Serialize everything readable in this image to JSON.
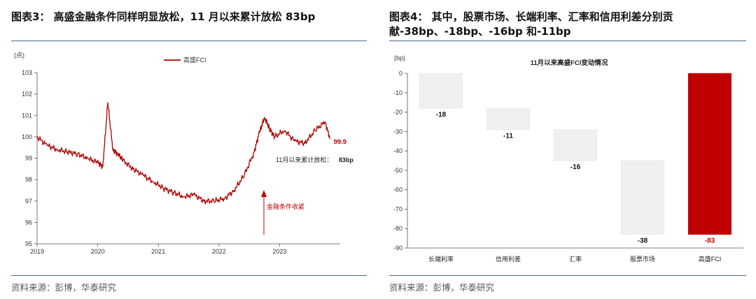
{
  "left_panel": {
    "title": "图表3：  高盛金融条件同样明显放松，11 月以来累计放松 83bp",
    "source": "资料来源：彭博，华泰研究"
  },
  "right_panel": {
    "title": "图表4：  其中，股票市场、长端利率、汇率和信用利差分别贡献-38bp、-18bp、-16bp 和-11bp",
    "source": "资料来源：彭博，华泰研究"
  },
  "colors": {
    "accent": "#c00000",
    "line": "#b00000",
    "bar_grey": "#f0f0f0",
    "rule": "#4a6d8c"
  },
  "chart_data": [
    {
      "type": "line",
      "title": "",
      "ylabel": "(点)",
      "ylim": [
        95,
        103
      ],
      "yticks": [
        95,
        96,
        97,
        98,
        99,
        100,
        101,
        102,
        103
      ],
      "xticks": [
        "2019",
        "2020",
        "2021",
        "2022",
        "2023"
      ],
      "legend": "top-left",
      "series": [
        {
          "name": "高盛FCI",
          "x": [
            "2019-01",
            "2019-03",
            "2019-05",
            "2019-07",
            "2019-09",
            "2019-11",
            "2020-01",
            "2020-02",
            "2020-03",
            "2020-04",
            "2020-05",
            "2020-06",
            "2020-08",
            "2020-10",
            "2020-12",
            "2021-02",
            "2021-04",
            "2021-06",
            "2021-08",
            "2021-10",
            "2021-12",
            "2022-02",
            "2022-04",
            "2022-06",
            "2022-08",
            "2022-09",
            "2022-10",
            "2022-11",
            "2022-12",
            "2023-02",
            "2023-04",
            "2023-06",
            "2023-08",
            "2023-10",
            "2023-11"
          ],
          "values": [
            100.0,
            99.6,
            99.4,
            99.3,
            99.2,
            99.0,
            98.8,
            98.6,
            101.6,
            99.4,
            99.2,
            98.9,
            98.5,
            98.2,
            97.9,
            97.6,
            97.4,
            97.2,
            97.3,
            97.0,
            97.0,
            97.1,
            97.5,
            98.2,
            99.3,
            100.2,
            100.9,
            100.4,
            100.0,
            100.3,
            99.8,
            99.7,
            100.3,
            100.7,
            99.9
          ]
        }
      ],
      "annotations": [
        {
          "text": "99.9"
        },
        {
          "text": "11月以来累计放松：",
          "value_text": "83bp"
        },
        {
          "text": "金融条件收紧"
        }
      ]
    },
    {
      "type": "bar",
      "subtype": "waterfall",
      "title": "11月以来高盛FCI变动情况",
      "ylabel": "(bp)",
      "ylim": [
        -90,
        0
      ],
      "yticks": [
        0,
        -10,
        -20,
        -30,
        -40,
        -50,
        -60,
        -70,
        -80,
        -90
      ],
      "categories": [
        "长端利率",
        "信用利差",
        "汇率",
        "股票市场",
        "高盛FCI"
      ],
      "values": [
        -18,
        -11,
        -16,
        -38,
        -83
      ],
      "labels": [
        "-18",
        "-11",
        "-16",
        "-38",
        "-83"
      ]
    }
  ]
}
